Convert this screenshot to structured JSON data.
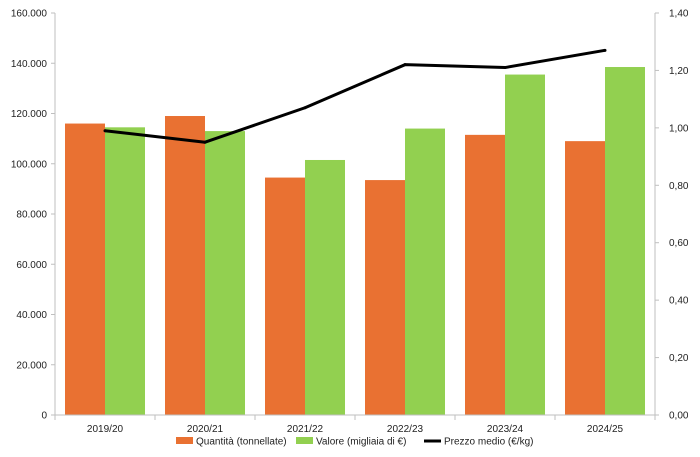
{
  "chart_data": {
    "type": "bar",
    "categories": [
      "2019/20",
      "2020/21",
      "2021/22",
      "2022/23",
      "2023/24",
      "2024/25"
    ],
    "series": [
      {
        "name": "Quantità (tonnellate)",
        "kind": "bar",
        "axis": "left",
        "color": "#E97132",
        "values": [
          116000,
          119000,
          94500,
          93500,
          111500,
          109000
        ]
      },
      {
        "name": "Valore (migliaia di €)",
        "kind": "bar",
        "axis": "left",
        "color": "#92D050",
        "values": [
          114500,
          113000,
          101500,
          114000,
          135500,
          138500
        ]
      },
      {
        "name": "Prezzo medio (€/kg)",
        "kind": "line",
        "axis": "right",
        "color": "#000000",
        "values": [
          0.99,
          0.95,
          1.07,
          1.22,
          1.21,
          1.27
        ]
      }
    ],
    "y_left": {
      "ylim": [
        0,
        160000
      ],
      "ticks": [
        0,
        20000,
        40000,
        60000,
        80000,
        100000,
        120000,
        140000,
        160000
      ],
      "tick_labels": [
        "0",
        "20.000",
        "40.000",
        "60.000",
        "80.000",
        "100.000",
        "120.000",
        "140.000",
        "160.000"
      ]
    },
    "y_right": {
      "ylim": [
        0,
        1.4
      ],
      "ticks": [
        0,
        0.2,
        0.4,
        0.6,
        0.8,
        1.0,
        1.2,
        1.4
      ],
      "tick_labels": [
        "0,00",
        "0,20",
        "0,40",
        "0,60",
        "0,80",
        "1,00",
        "1,20",
        "1,40"
      ]
    },
    "title": "",
    "xlabel": "",
    "ylabel": "",
    "grid": false,
    "legend": "bottom"
  }
}
